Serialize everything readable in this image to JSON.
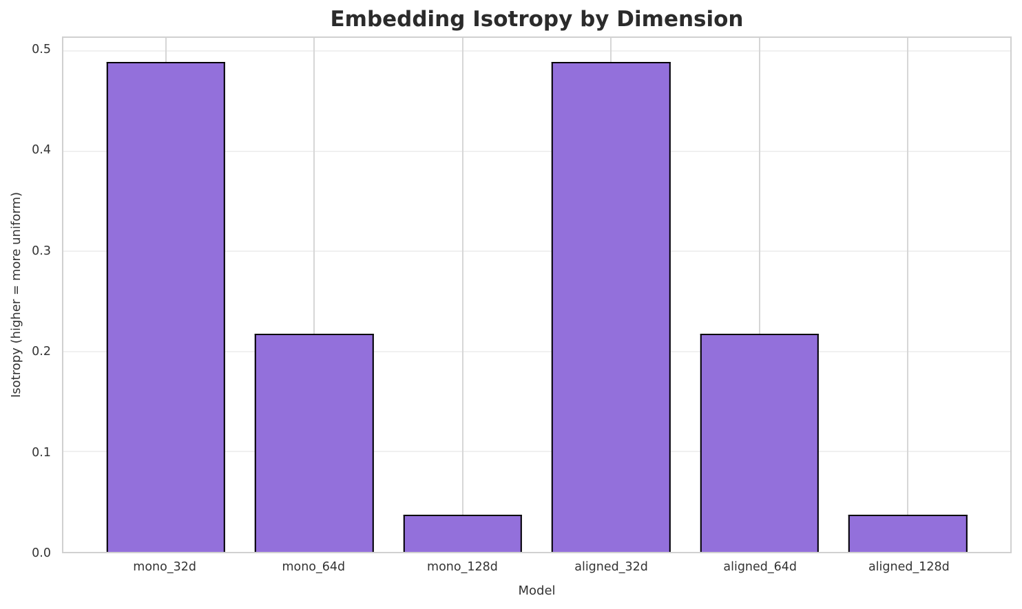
{
  "chart_data": {
    "type": "bar",
    "title": "Embedding Isotropy by Dimension",
    "xlabel": "Model",
    "ylabel": "Isotropy (higher = more uniform)",
    "categories": [
      "mono_32d",
      "mono_64d",
      "mono_128d",
      "aligned_32d",
      "aligned_64d",
      "aligned_128d"
    ],
    "values": [
      0.489,
      0.218,
      0.037,
      0.489,
      0.218,
      0.037
    ],
    "ylim": [
      0,
      0.513
    ],
    "yticks": [
      0,
      0.1,
      0.2,
      0.3,
      0.4,
      0.5
    ],
    "ytick_labels": [
      "0.0",
      "0.1",
      "0.2",
      "0.3",
      "0.4",
      "0.5"
    ],
    "grid": true,
    "legend": "none",
    "layout_hints": {
      "x_margin_units": 0.69,
      "bar_width_units": 0.8
    },
    "colors": {
      "bar_fill": "#9370DB",
      "bar_edge": "#000000",
      "h_gridline": "#f0f0f0",
      "v_gridline": "#d6d6d6",
      "spine": "#d0d0d0",
      "title_text": "#2b2b2b",
      "tick_text": "#333333",
      "background": "#ffffff"
    }
  }
}
